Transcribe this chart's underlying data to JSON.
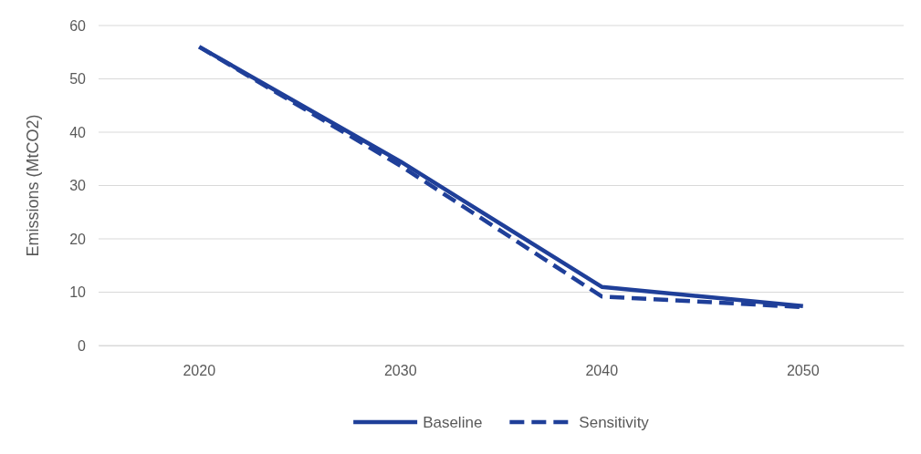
{
  "chart_data": {
    "type": "line",
    "ylabel": "Emissions (MtCO2)",
    "categories": [
      "2020",
      "2030",
      "2040",
      "2050"
    ],
    "series": [
      {
        "name": "Baseline",
        "color": "#1f3f99",
        "line_style": "solid",
        "values": [
          56,
          34.5,
          11,
          7.4
        ]
      },
      {
        "name": "Sensitivity",
        "color": "#1f3f99",
        "line_style": "dashed",
        "values": [
          56,
          33.7,
          9.2,
          7.2
        ]
      }
    ],
    "ylim": [
      0,
      60
    ],
    "yticks": [
      0,
      10,
      20,
      30,
      40,
      50,
      60
    ],
    "grid": "y",
    "legend": "bottom",
    "marker": "none"
  }
}
